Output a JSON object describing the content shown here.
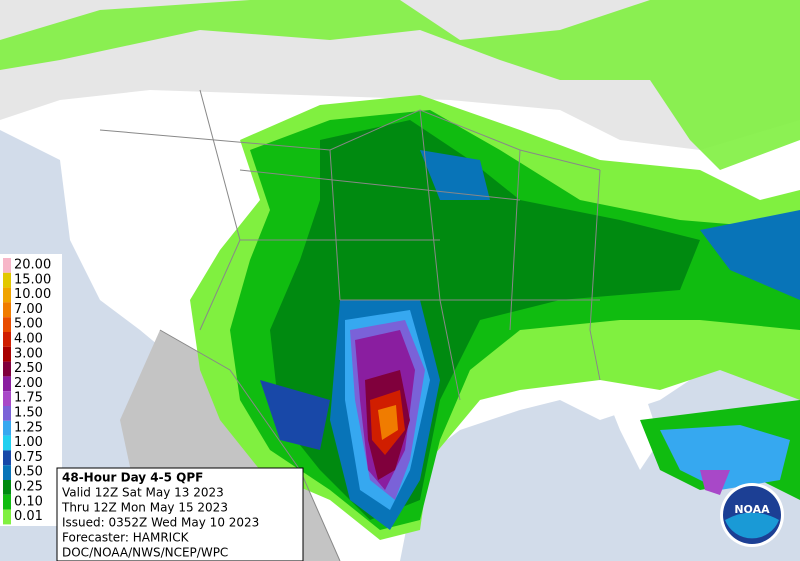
{
  "legend": {
    "items": [
      {
        "label": "20.00",
        "color": "#f7b6c8"
      },
      {
        "label": "15.00",
        "color": "#e2c800"
      },
      {
        "label": "10.00",
        "color": "#f0a400"
      },
      {
        "label": "7.00",
        "color": "#f07c00"
      },
      {
        "label": "5.00",
        "color": "#e84c00"
      },
      {
        "label": "4.00",
        "color": "#d01e00"
      },
      {
        "label": "3.00",
        "color": "#a80000"
      },
      {
        "label": "2.50",
        "color": "#80003c"
      },
      {
        "label": "2.00",
        "color": "#8a1ea0"
      },
      {
        "label": "1.75",
        "color": "#a848c8"
      },
      {
        "label": "1.50",
        "color": "#7a62d8"
      },
      {
        "label": "1.25",
        "color": "#36a8f0"
      },
      {
        "label": "1.00",
        "color": "#20d0f0"
      },
      {
        "label": "0.75",
        "color": "#1848a8"
      },
      {
        "label": "0.50",
        "color": "#0874b8"
      },
      {
        "label": "0.25",
        "color": "#008a10"
      },
      {
        "label": "0.10",
        "color": "#10bc10"
      },
      {
        "label": "0.01",
        "color": "#80f040"
      }
    ]
  },
  "info": {
    "title": "48-Hour Day 4-5 QPF",
    "lines": [
      "Valid 12Z Sat May 13 2023",
      "Thru 12Z Mon May 15 2023",
      "Issued: 0352Z Wed May 10 2023",
      "Forecaster: HAMRICK",
      "DOC/NOAA/NWS/NCEP/WPC"
    ]
  },
  "logo": {
    "text": "NOAA"
  }
}
